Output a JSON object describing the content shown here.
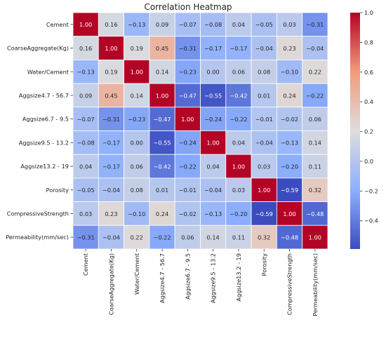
{
  "chart_data": {
    "type": "heatmap",
    "title": "Correlation Heatmap",
    "labels": [
      "Cement",
      "CoarseAggregate(Kg)",
      "Water/Cement",
      "Aggsize4.7 - 56.7",
      "Aggsize6.7 - 9.5",
      "Aggsize9.5 - 13.2",
      "Aggsize13.2 - 19",
      "Porosity",
      "CompressiveStrength",
      "Permeability(mm/sec)"
    ],
    "matrix": [
      [
        1.0,
        0.16,
        -0.13,
        0.09,
        -0.07,
        -0.08,
        0.04,
        -0.05,
        0.03,
        -0.31
      ],
      [
        0.16,
        1.0,
        0.19,
        0.45,
        -0.31,
        -0.17,
        -0.17,
        -0.04,
        0.23,
        -0.04
      ],
      [
        -0.13,
        0.19,
        1.0,
        0.14,
        -0.23,
        0.0,
        0.06,
        0.08,
        -0.1,
        0.22
      ],
      [
        0.09,
        0.45,
        0.14,
        1.0,
        -0.47,
        -0.55,
        -0.42,
        0.01,
        0.24,
        -0.22
      ],
      [
        -0.07,
        -0.31,
        -0.23,
        -0.47,
        1.0,
        -0.24,
        -0.22,
        -0.01,
        -0.02,
        0.06
      ],
      [
        -0.08,
        -0.17,
        0.0,
        -0.55,
        -0.24,
        1.0,
        0.04,
        -0.04,
        -0.13,
        0.14
      ],
      [
        0.04,
        -0.17,
        0.06,
        -0.42,
        -0.22,
        0.04,
        1.0,
        0.03,
        -0.2,
        0.11
      ],
      [
        -0.05,
        -0.04,
        0.08,
        0.01,
        -0.01,
        -0.04,
        0.03,
        1.0,
        -0.59,
        0.32
      ],
      [
        0.03,
        0.23,
        -0.1,
        0.24,
        -0.02,
        -0.13,
        -0.2,
        -0.59,
        1.0,
        -0.48
      ],
      [
        -0.31,
        -0.04,
        0.22,
        -0.22,
        0.06,
        0.14,
        0.11,
        0.32,
        -0.48,
        1.0
      ]
    ],
    "value_format": "2 decimals",
    "colormap": "coolwarm",
    "vmin": -0.59,
    "vmax": 1.0,
    "colorbar_ticks": [
      1.0,
      0.8,
      0.6,
      0.4,
      0.2,
      0.0,
      -0.2,
      -0.4
    ],
    "colorbar_tick_labels": [
      "1.0",
      "0.8",
      "0.6",
      "0.4",
      "0.2",
      "0.0",
      "−0.2",
      "−0.4"
    ],
    "colors": {
      "low": "#3b4cc0",
      "mid": "#dddddd",
      "high": "#b40426"
    }
  }
}
